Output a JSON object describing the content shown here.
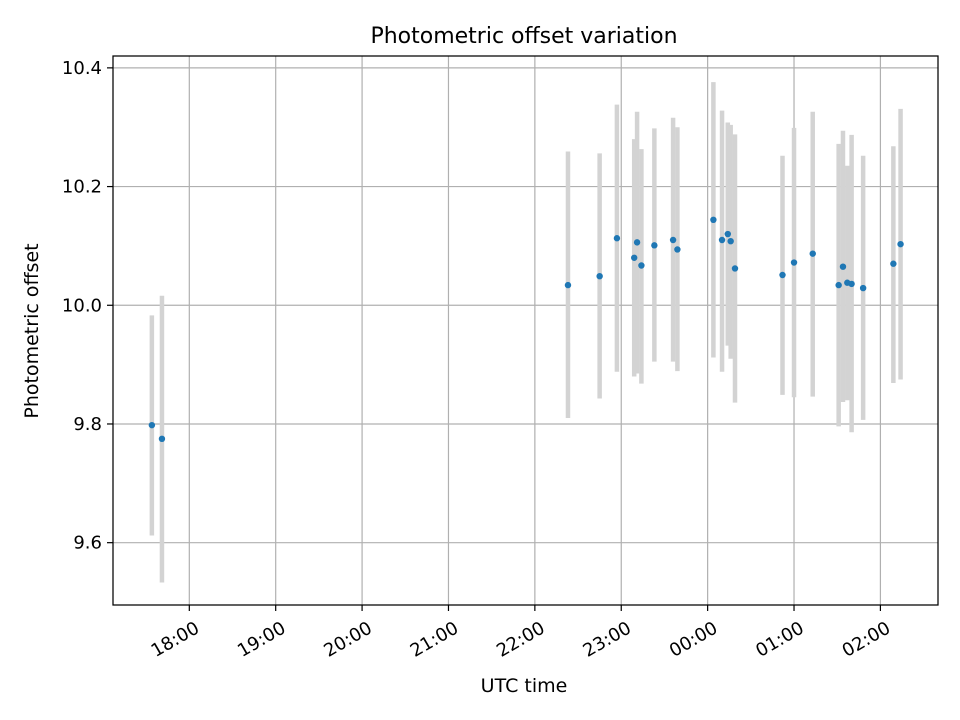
{
  "chart_data": {
    "type": "scatter",
    "title": "Photometric offset variation",
    "xlabel": "UTC time",
    "ylabel": "Photometric offset",
    "x_is_time": true,
    "xlim": [
      "17:07",
      "02:40"
    ],
    "ylim": [
      9.495,
      10.42
    ],
    "x_ticks": [
      "18:00",
      "19:00",
      "20:00",
      "21:00",
      "22:00",
      "23:00",
      "00:00",
      "01:00",
      "02:00"
    ],
    "y_ticks": [
      9.6,
      9.8,
      10.0,
      10.2,
      10.4
    ],
    "y_tick_labels": [
      "9.6",
      "9.8",
      "10.0",
      "10.2",
      "10.4"
    ],
    "grid": true,
    "colors": {
      "points": "#1f77b4",
      "errorbars": "#d3d3d3",
      "grid": "#b0b0b0",
      "axes": "#000000"
    },
    "points": [
      {
        "x": "17:34",
        "y": 9.798,
        "ylo": 9.612,
        "yhi": 9.983
      },
      {
        "x": "17:41",
        "y": 9.775,
        "ylo": 9.533,
        "yhi": 10.016
      },
      {
        "x": "22:23",
        "y": 10.034,
        "ylo": 9.81,
        "yhi": 10.259
      },
      {
        "x": "22:45",
        "y": 10.049,
        "ylo": 9.843,
        "yhi": 10.256
      },
      {
        "x": "22:57",
        "y": 10.113,
        "ylo": 9.888,
        "yhi": 10.338
      },
      {
        "x": "23:09",
        "y": 10.08,
        "ylo": 9.88,
        "yhi": 10.28
      },
      {
        "x": "23:11",
        "y": 10.106,
        "ylo": 9.885,
        "yhi": 10.326
      },
      {
        "x": "23:14",
        "y": 10.067,
        "ylo": 9.868,
        "yhi": 10.263
      },
      {
        "x": "23:23",
        "y": 10.101,
        "ylo": 9.905,
        "yhi": 10.298
      },
      {
        "x": "23:36",
        "y": 10.11,
        "ylo": 9.905,
        "yhi": 10.316
      },
      {
        "x": "23:39",
        "y": 10.094,
        "ylo": 9.889,
        "yhi": 10.3
      },
      {
        "x": "00:04",
        "y": 10.144,
        "ylo": 9.912,
        "yhi": 10.376
      },
      {
        "x": "00:10",
        "y": 10.11,
        "ylo": 9.888,
        "yhi": 10.328
      },
      {
        "x": "00:14",
        "y": 10.12,
        "ylo": 9.932,
        "yhi": 10.308
      },
      {
        "x": "00:16",
        "y": 10.108,
        "ylo": 9.91,
        "yhi": 10.304
      },
      {
        "x": "00:19",
        "y": 10.062,
        "ylo": 9.836,
        "yhi": 10.288
      },
      {
        "x": "00:52",
        "y": 10.051,
        "ylo": 9.849,
        "yhi": 10.252
      },
      {
        "x": "01:00",
        "y": 10.072,
        "ylo": 9.845,
        "yhi": 10.299
      },
      {
        "x": "01:13",
        "y": 10.087,
        "ylo": 9.846,
        "yhi": 10.326
      },
      {
        "x": "01:31",
        "y": 10.034,
        "ylo": 9.796,
        "yhi": 10.272
      },
      {
        "x": "01:34",
        "y": 10.065,
        "ylo": 9.837,
        "yhi": 10.294
      },
      {
        "x": "01:37",
        "y": 10.038,
        "ylo": 9.84,
        "yhi": 10.235
      },
      {
        "x": "01:40",
        "y": 10.036,
        "ylo": 9.786,
        "yhi": 10.287
      },
      {
        "x": "01:48",
        "y": 10.029,
        "ylo": 9.807,
        "yhi": 10.252
      },
      {
        "x": "02:09",
        "y": 10.07,
        "ylo": 9.869,
        "yhi": 10.268
      },
      {
        "x": "02:14",
        "y": 10.103,
        "ylo": 9.875,
        "yhi": 10.331
      }
    ]
  }
}
